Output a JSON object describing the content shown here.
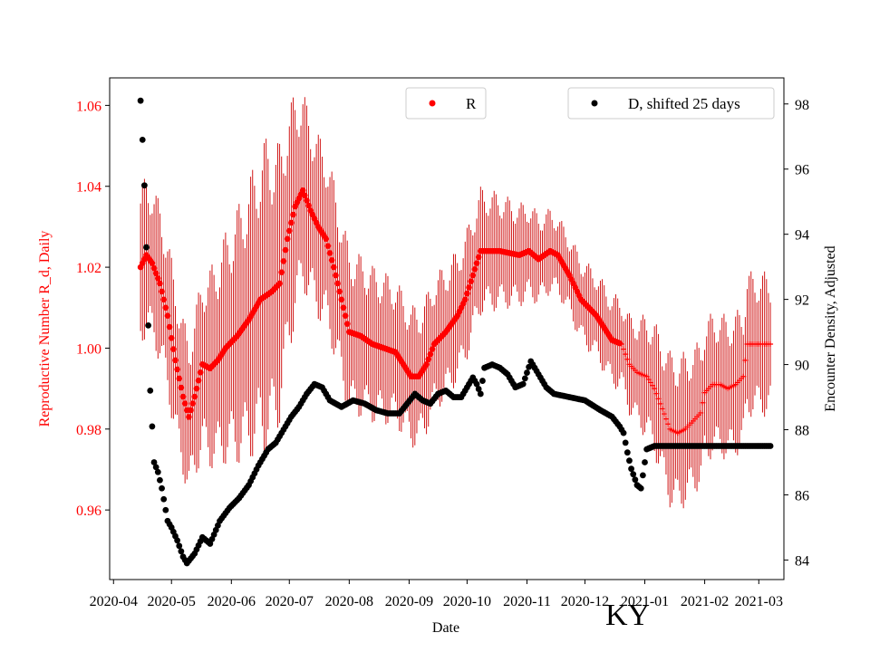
{
  "chart_data": {
    "type": "scatter",
    "title": "",
    "state_label": "KY",
    "xlabel": "Date",
    "ylabel_left": "Reproductive Number R_d, Daily",
    "ylabel_right": "Encounter Density, Adjusted",
    "x_ticks": [
      "2020-04",
      "2020-05",
      "2020-06",
      "2020-07",
      "2020-08",
      "2020-09",
      "2020-10",
      "2020-11",
      "2020-12",
      "2021-01",
      "2021-02",
      "2021-03"
    ],
    "x_tick_days": [
      0,
      30,
      61,
      91,
      122,
      153,
      183,
      214,
      244,
      275,
      306,
      334
    ],
    "x_range_days": [
      -2,
      347
    ],
    "ylim_left": [
      0.9428,
      1.0668
    ],
    "ylim_right": [
      83.4,
      98.8
    ],
    "y_ticks_left": [
      "0.96",
      "0.98",
      "1.00",
      "1.02",
      "1.04",
      "1.06"
    ],
    "y_ticks_right": [
      "84",
      "86",
      "88",
      "90",
      "92",
      "94",
      "96",
      "98"
    ],
    "colors": {
      "r_series": "#ff0000",
      "r_error": "#cc0000",
      "left_axis": "#ff0000",
      "d_series": "#000000",
      "axis": "#000000"
    },
    "legend_left": {
      "label": "R",
      "color": "#ff0000",
      "placement": "top-center"
    },
    "legend_right": {
      "label": "D, shifted 25 days",
      "color": "#000000",
      "placement": "top-right"
    },
    "series": [
      {
        "name": "R",
        "axis": "left",
        "marker": "dot",
        "x_days": [
          14,
          340
        ],
        "knots": [
          [
            14,
            1.02
          ],
          [
            17,
            1.023
          ],
          [
            20,
            1.021
          ],
          [
            24,
            1.016
          ],
          [
            28,
            1.008
          ],
          [
            32,
            0.997
          ],
          [
            36,
            0.988
          ],
          [
            39,
            0.983
          ],
          [
            42,
            0.988
          ],
          [
            46,
            0.996
          ],
          [
            50,
            0.995
          ],
          [
            54,
            0.997
          ],
          [
            58,
            1.0
          ],
          [
            64,
            1.003
          ],
          [
            70,
            1.007
          ],
          [
            76,
            1.012
          ],
          [
            82,
            1.014
          ],
          [
            86,
            1.016
          ],
          [
            90,
            1.027
          ],
          [
            94,
            1.035
          ],
          [
            98,
            1.039
          ],
          [
            102,
            1.034
          ],
          [
            106,
            1.03
          ],
          [
            110,
            1.027
          ],
          [
            114,
            1.02
          ],
          [
            118,
            1.012
          ],
          [
            122,
            1.004
          ],
          [
            128,
            1.003
          ],
          [
            134,
            1.001
          ],
          [
            140,
            1.0
          ],
          [
            146,
            0.999
          ],
          [
            150,
            0.996
          ],
          [
            154,
            0.993
          ],
          [
            158,
            0.993
          ],
          [
            162,
            0.996
          ],
          [
            166,
            1.001
          ],
          [
            172,
            1.004
          ],
          [
            178,
            1.008
          ],
          [
            182,
            1.012
          ],
          [
            186,
            1.018
          ],
          [
            190,
            1.024
          ],
          [
            200,
            1.024
          ],
          [
            210,
            1.023
          ],
          [
            215,
            1.024
          ],
          [
            220,
            1.022
          ],
          [
            226,
            1.024
          ],
          [
            230,
            1.023
          ],
          [
            236,
            1.018
          ],
          [
            242,
            1.012
          ],
          [
            250,
            1.008
          ],
          [
            258,
            1.002
          ],
          [
            263,
            1.001
          ],
          [
            267,
            0.996
          ],
          [
            271,
            0.994
          ],
          [
            276,
            0.993
          ],
          [
            280,
            0.99
          ],
          [
            284,
            0.985
          ],
          [
            288,
            0.98
          ],
          [
            292,
            0.979
          ],
          [
            296,
            0.98
          ],
          [
            300,
            0.982
          ],
          [
            304,
            0.984
          ],
          [
            306,
            0.989
          ],
          [
            310,
            0.991
          ],
          [
            314,
            0.991
          ],
          [
            318,
            0.99
          ],
          [
            322,
            0.991
          ],
          [
            326,
            0.993
          ],
          [
            328,
            1.001
          ],
          [
            340,
            1.001
          ]
        ],
        "error_band": [
          [
            14,
            0.02
          ],
          [
            40,
            0.02
          ],
          [
            80,
            0.04
          ],
          [
            100,
            0.024
          ],
          [
            130,
            0.02
          ],
          [
            150,
            0.018
          ],
          [
            190,
            0.016
          ],
          [
            230,
            0.01
          ],
          [
            265,
            0.012
          ],
          [
            290,
            0.02
          ],
          [
            305,
            0.018
          ],
          [
            328,
            0.018
          ],
          [
            340,
            0.018
          ]
        ]
      },
      {
        "name": "D, shifted 25 days",
        "axis": "right",
        "marker": "dot",
        "knots": [
          [
            14,
            98.1
          ],
          [
            15,
            96.9
          ],
          [
            16,
            95.5
          ],
          [
            17,
            93.6
          ],
          [
            18,
            91.2
          ],
          [
            19,
            89.2
          ],
          [
            21,
            87.0
          ],
          [
            23,
            86.7
          ],
          [
            25,
            86.2
          ],
          [
            28,
            85.2
          ],
          [
            30,
            85.0
          ],
          [
            33,
            84.6
          ],
          [
            36,
            84.1
          ],
          [
            38,
            83.9
          ],
          [
            42,
            84.2
          ],
          [
            46,
            84.7
          ],
          [
            50,
            84.5
          ],
          [
            55,
            85.2
          ],
          [
            60,
            85.6
          ],
          [
            65,
            85.9
          ],
          [
            70,
            86.3
          ],
          [
            75,
            86.9
          ],
          [
            80,
            87.4
          ],
          [
            84,
            87.6
          ],
          [
            86,
            87.8
          ],
          [
            88,
            88.0
          ],
          [
            92,
            88.4
          ],
          [
            96,
            88.7
          ],
          [
            100,
            89.1
          ],
          [
            104,
            89.4
          ],
          [
            108,
            89.3
          ],
          [
            112,
            88.9
          ],
          [
            118,
            88.7
          ],
          [
            124,
            88.9
          ],
          [
            130,
            88.8
          ],
          [
            136,
            88.6
          ],
          [
            142,
            88.5
          ],
          [
            148,
            88.5
          ],
          [
            152,
            88.8
          ],
          [
            156,
            89.1
          ],
          [
            160,
            88.9
          ],
          [
            164,
            88.8
          ],
          [
            168,
            89.1
          ],
          [
            172,
            89.2
          ],
          [
            176,
            89.0
          ],
          [
            180,
            89.0
          ],
          [
            182,
            89.2
          ],
          [
            186,
            89.6
          ],
          [
            188,
            89.4
          ],
          [
            190,
            89.1
          ],
          [
            192,
            89.9
          ],
          [
            196,
            90.0
          ],
          [
            200,
            89.9
          ],
          [
            204,
            89.7
          ],
          [
            208,
            89.3
          ],
          [
            212,
            89.4
          ],
          [
            216,
            90.1
          ],
          [
            220,
            89.7
          ],
          [
            224,
            89.3
          ],
          [
            228,
            89.1
          ],
          [
            236,
            89.0
          ],
          [
            244,
            88.9
          ],
          [
            252,
            88.6
          ],
          [
            258,
            88.4
          ],
          [
            262,
            88.1
          ],
          [
            264,
            87.9
          ],
          [
            266,
            87.3
          ],
          [
            268,
            86.8
          ],
          [
            271,
            86.3
          ],
          [
            273,
            86.2
          ],
          [
            276,
            87.4
          ],
          [
            280,
            87.5
          ],
          [
            300,
            87.5
          ],
          [
            340,
            87.5
          ]
        ]
      }
    ]
  }
}
